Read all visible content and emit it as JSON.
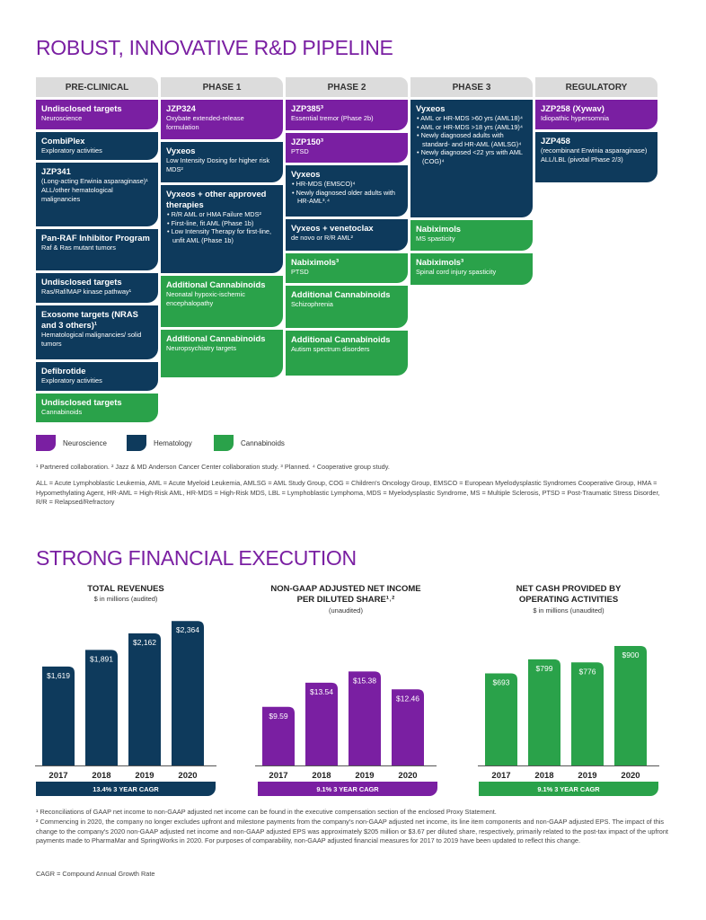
{
  "pipeline": {
    "title": "ROBUST, INNOVATIVE R&D PIPELINE",
    "phases": [
      "PRE-CLINICAL",
      "PHASE 1",
      "PHASE 2",
      "PHASE 3",
      "REGULATORY"
    ],
    "preclinical": [
      {
        "title": "Undisclosed targets",
        "sub": "Neuroscience"
      },
      {
        "title": "CombiPlex",
        "sub": "Exploratory activities"
      },
      {
        "title": "JZP341",
        "sub": "(Long-acting Erwinia asparaginase)¹ ALL/other hematological malignancies"
      },
      {
        "title": "Pan-RAF Inhibitor Program",
        "sub": "Raf & Ras mutant tumors"
      },
      {
        "title": "Undisclosed targets",
        "sub": "Ras/Raf/MAP kinase pathway¹"
      },
      {
        "title": "Exosome targets (NRAS and 3 others)¹",
        "sub": "Hematological malignancies/ solid tumors"
      },
      {
        "title": "Defibrotide",
        "sub": "Exploratory activities"
      },
      {
        "title": "Undisclosed targets",
        "sub": "Cannabinoids"
      }
    ],
    "phase1": [
      {
        "title": "JZP324",
        "sub": "Oxybate extended-release formulation"
      },
      {
        "title": "Vyxeos",
        "sub": "Low Intensity Dosing for higher risk MDS²"
      },
      {
        "title": "Vyxeos + other approved therapies",
        "items": [
          "R/R AML or HMA Failure MDS²",
          "First-line, fit AML (Phase 1b)",
          "Low Intensity Therapy for first-line, unfit AML (Phase 1b)"
        ]
      },
      {
        "title": "Additional Cannabinoids",
        "sub": "Neonatal hypoxic-ischemic encephalopathy"
      },
      {
        "title": "Additional Cannabinoids",
        "sub": "Neuropsychiatry targets"
      }
    ],
    "phase2": [
      {
        "title": "JZP385³",
        "sub": "Essential tremor (Phase 2b)"
      },
      {
        "title": "JZP150³",
        "sub": "PTSD"
      },
      {
        "title": "Vyxeos",
        "items": [
          "HR-MDS (EMSCO)⁴",
          "Newly diagnosed older adults with HR-AML³˒⁴"
        ]
      },
      {
        "title": "Vyxeos + venetoclax",
        "sub": "de novo or R/R AML²"
      },
      {
        "title": "Nabiximols³",
        "sub": "PTSD"
      },
      {
        "title": "Additional Cannabinoids",
        "sub": "Schizophrenia"
      },
      {
        "title": "Additional Cannabinoids",
        "sub": "Autism spectrum disorders"
      }
    ],
    "phase3": [
      {
        "title": "Vyxeos",
        "items": [
          "AML or HR-MDS >60 yrs (AML18)⁴",
          "AML or HR-MDS >18 yrs (AML19)⁴",
          "Newly diagnosed adults with standard- and HR-AML (AMLSG)⁴",
          "Newly diagnosed <22 yrs with AML (COG)⁴"
        ]
      },
      {
        "title": "Nabiximols",
        "sub": "MS spasticity"
      },
      {
        "title": "Nabiximols³",
        "sub": "Spinal cord injury spasticity"
      }
    ],
    "regulatory": [
      {
        "title": "JZP258 (Xywav)",
        "sub": "Idiopathic hypersomnia"
      },
      {
        "title": "JZP458",
        "sub": "(recombinant Erwinia asparaginase) ALL/LBL (pivotal Phase 2/3)"
      }
    ],
    "legend": [
      "Neuroscience",
      "Hematology",
      "Cannabinoids"
    ],
    "colors": {
      "neuroscience": "#7a1fa2",
      "hematology": "#0e3a5c",
      "cannabinoids": "#2aa24a"
    },
    "footnote1": "¹ Partnered collaboration. ² Jazz & MD Anderson Cancer Center collaboration study. ³ Planned. ⁴ Cooperative group study.",
    "abbrev": "ALL = Acute Lymphoblastic Leukemia, AML = Acute Myeloid Leukemia, AMLSG = AML Study Group, COG = Children's Oncology Group, EMSCO = European Myelodysplastic Syndromes Cooperative Group, HMA = Hypomethylating Agent, HR-AML = High-Risk AML, HR-MDS = High-Risk MDS, LBL = Lymphoblastic Lymphoma, MDS = Myelodysplastic Syndrome, MS = Multiple Sclerosis, PTSD = Post-Traumatic Stress Disorder, R/R = Relapsed/Refractory"
  },
  "financial": {
    "title": "STRONG FINANCIAL EXECUTION",
    "footnote1": "¹ Reconciliations of GAAP net income to non-GAAP adjusted net income can be found in the executive compensation section of the enclosed Proxy Statement.",
    "footnote2": "² Commencing in 2020, the company no longer excludes upfront and milestone payments from the company's non-GAAP adjusted net income, its line item components and non-GAAP adjusted EPS. The impact of this change to the company's 2020 non-GAAP adjusted net income and non-GAAP adjusted EPS was approximately $205 million or $3.67 per diluted share, respectively, primarily related to the post-tax impact of the upfront payments made to PharmaMar and SpringWorks in 2020. For purposes of comparability, non-GAAP adjusted financial measures for 2017 to 2019 have been updated to reflect this change.",
    "cagr_def": "CAGR = Compound Annual Growth Rate"
  },
  "chart_data": [
    {
      "type": "bar",
      "title": "TOTAL REVENUES",
      "subtitle": "$ in millions (audited)",
      "categories": [
        "2017",
        "2018",
        "2019",
        "2020"
      ],
      "values": [
        1619,
        1891,
        2162,
        2364
      ],
      "labels": [
        "$1,619",
        "$1,891",
        "$2,162",
        "$2,364"
      ],
      "ylim": [
        0,
        2500
      ],
      "color": "#0e3a5c",
      "cagr": "13.4% 3 YEAR CAGR"
    },
    {
      "type": "bar",
      "title": "NON-GAAP ADJUSTED NET INCOME PER DILUTED SHARE¹˒²",
      "subtitle": "(unaudited)",
      "categories": [
        "2017",
        "2018",
        "2019",
        "2020"
      ],
      "values": [
        9.59,
        13.54,
        15.38,
        12.46
      ],
      "labels": [
        "$9.59",
        "$13.54",
        "$15.38",
        "$12.46"
      ],
      "ylim": [
        0,
        25
      ],
      "color": "#7a1fa2",
      "cagr": "9.1% 3 YEAR CAGR"
    },
    {
      "type": "bar",
      "title": "NET CASH PROVIDED BY OPERATING ACTIVITIES",
      "subtitle": "$ in millions (unaudited)",
      "categories": [
        "2017",
        "2018",
        "2019",
        "2020"
      ],
      "values": [
        693,
        799,
        776,
        900
      ],
      "labels": [
        "$693",
        "$799",
        "$776",
        "$900"
      ],
      "ylim": [
        0,
        1150
      ],
      "color": "#2aa24a",
      "cagr": "9.1% 3 YEAR CAGR"
    }
  ]
}
